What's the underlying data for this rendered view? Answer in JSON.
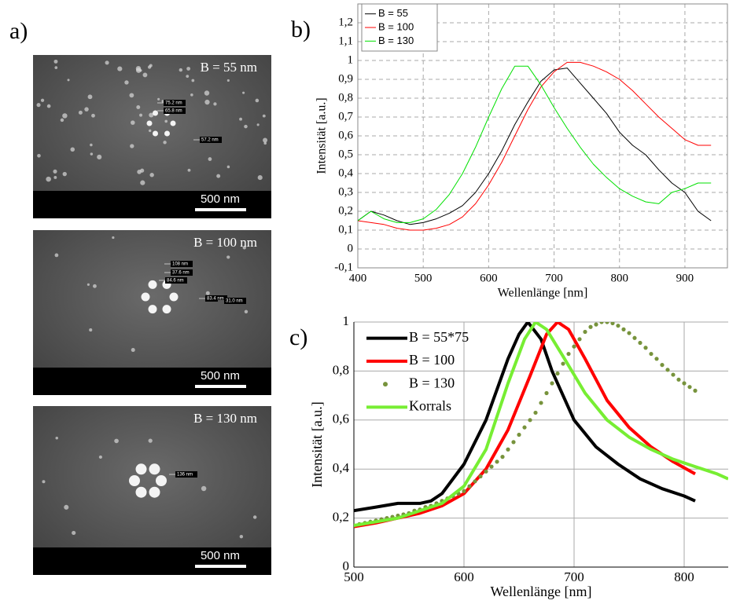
{
  "sem": {
    "label": "a)",
    "images": [
      {
        "label": "B = 55 nm",
        "scale": "500 nm",
        "measurements": [
          "75.2 nm",
          "65.8 nm",
          "57.2 nm"
        ]
      },
      {
        "label": "B = 100 nm",
        "scale": "500 nm",
        "measurements": [
          "108 nm",
          "37.6 nm",
          "84.6 nm",
          "83.4 nm",
          "31.0 nm"
        ]
      },
      {
        "label": "B = 130 nm",
        "scale": "500 nm",
        "measurements": [
          "136 nm"
        ]
      }
    ]
  },
  "chart_data": [
    {
      "type": "line",
      "label": "b)",
      "xlabel": "Wellenlänge [nm]",
      "ylabel": "Intensität [a.u.]",
      "xlim": [
        400,
        965
      ],
      "ylim": [
        -0.1,
        1.3
      ],
      "xticks": [
        400,
        500,
        600,
        700,
        800,
        900
      ],
      "yticks": [
        {
          "value": -0.1,
          "label": "-0,1"
        },
        0,
        {
          "value": 0.1,
          "label": "0,1"
        },
        {
          "value": 0.2,
          "label": "0,2"
        },
        {
          "value": 0.3,
          "label": "0,3"
        },
        {
          "value": 0.4,
          "label": "0,4"
        },
        {
          "value": 0.5,
          "label": "0,5"
        },
        {
          "value": 0.6,
          "label": "0,6"
        },
        {
          "value": 0.7,
          "label": "0,7"
        },
        {
          "value": 0.8,
          "label": "0,8"
        },
        {
          "value": 0.9,
          "label": "0,9"
        },
        1,
        {
          "value": 1.1,
          "label": "1,1"
        },
        {
          "value": 1.2,
          "label": "1,2"
        }
      ],
      "grid": "dashed",
      "legend": "upper left",
      "line_width": 1,
      "x": [
        400,
        420,
        440,
        460,
        480,
        500,
        520,
        540,
        560,
        580,
        600,
        620,
        640,
        660,
        680,
        700,
        720,
        740,
        760,
        780,
        800,
        820,
        840,
        860,
        880,
        900,
        920,
        940
      ],
      "series": [
        {
          "name": "B = 55",
          "color": "#000000",
          "values": [
            0.15,
            0.2,
            0.18,
            0.15,
            0.13,
            0.14,
            0.16,
            0.19,
            0.23,
            0.3,
            0.4,
            0.52,
            0.66,
            0.78,
            0.89,
            0.95,
            0.96,
            0.88,
            0.8,
            0.72,
            0.62,
            0.55,
            0.5,
            0.42,
            0.35,
            0.3,
            0.2,
            0.15
          ]
        },
        {
          "name": "B = 100",
          "color": "#ff0000",
          "values": [
            0.15,
            0.14,
            0.13,
            0.11,
            0.1,
            0.1,
            0.11,
            0.13,
            0.17,
            0.24,
            0.34,
            0.46,
            0.6,
            0.74,
            0.86,
            0.94,
            0.99,
            0.99,
            0.97,
            0.94,
            0.9,
            0.84,
            0.77,
            0.7,
            0.64,
            0.58,
            0.55,
            0.55
          ]
        },
        {
          "name": "B = 130",
          "color": "#00e000",
          "values": [
            0.15,
            0.2,
            0.16,
            0.14,
            0.14,
            0.16,
            0.21,
            0.29,
            0.4,
            0.54,
            0.7,
            0.85,
            0.97,
            0.97,
            0.87,
            0.75,
            0.64,
            0.54,
            0.45,
            0.38,
            0.32,
            0.28,
            0.25,
            0.24,
            0.3,
            0.32,
            0.35,
            0.35
          ]
        }
      ]
    },
    {
      "type": "line",
      "label": "c)",
      "xlabel": "Wellenlänge [nm]",
      "ylabel": "Intensität [a.u.]",
      "xlim": [
        500,
        840
      ],
      "ylim": [
        0,
        1
      ],
      "xticks": [
        500,
        600,
        700,
        800
      ],
      "yticks": [
        0,
        {
          "value": 0.2,
          "label": "0,2"
        },
        {
          "value": 0.4,
          "label": "0,4"
        },
        {
          "value": 0.6,
          "label": "0,6"
        },
        {
          "value": 0.8,
          "label": "0,8"
        },
        1
      ],
      "grid": "solid",
      "legend": "upper left",
      "line_width": 4,
      "series": [
        {
          "name": "B = 55*75",
          "color": "#000000",
          "x": [
            500,
            520,
            540,
            560,
            570,
            580,
            600,
            620,
            640,
            650,
            658,
            670,
            680,
            700,
            720,
            740,
            760,
            780,
            800,
            810
          ],
          "values": [
            0.23,
            0.245,
            0.26,
            0.26,
            0.27,
            0.3,
            0.42,
            0.6,
            0.85,
            0.95,
            1.0,
            0.93,
            0.8,
            0.6,
            0.49,
            0.42,
            0.36,
            0.32,
            0.29,
            0.27
          ]
        },
        {
          "name": "B = 100",
          "color": "#ff0000",
          "x": [
            500,
            520,
            540,
            560,
            580,
            600,
            620,
            640,
            660,
            675,
            685,
            695,
            710,
            730,
            750,
            770,
            790,
            810
          ],
          "values": [
            0.165,
            0.18,
            0.2,
            0.22,
            0.25,
            0.3,
            0.4,
            0.56,
            0.78,
            0.95,
            1.0,
            0.97,
            0.85,
            0.68,
            0.57,
            0.49,
            0.43,
            0.38
          ]
        },
        {
          "name": "B = 130",
          "color": "#77933c",
          "mode": "markers",
          "x": [
            500,
            505,
            510,
            515,
            520,
            525,
            530,
            535,
            540,
            545,
            550,
            555,
            560,
            565,
            570,
            575,
            580,
            585,
            590,
            595,
            600,
            605,
            610,
            615,
            620,
            625,
            630,
            635,
            640,
            645,
            650,
            655,
            660,
            665,
            670,
            675,
            680,
            685,
            690,
            695,
            700,
            705,
            710,
            715,
            720,
            725,
            730,
            735,
            740,
            745,
            750,
            755,
            760,
            765,
            770,
            775,
            780,
            785,
            790,
            795,
            800,
            805,
            810
          ],
          "values": [
            0.17,
            0.175,
            0.18,
            0.185,
            0.19,
            0.195,
            0.2,
            0.205,
            0.21,
            0.215,
            0.22,
            0.23,
            0.235,
            0.245,
            0.25,
            0.26,
            0.27,
            0.28,
            0.29,
            0.3,
            0.31,
            0.33,
            0.35,
            0.37,
            0.39,
            0.41,
            0.43,
            0.45,
            0.48,
            0.51,
            0.54,
            0.57,
            0.6,
            0.63,
            0.67,
            0.71,
            0.75,
            0.79,
            0.83,
            0.87,
            0.9,
            0.93,
            0.96,
            0.98,
            0.99,
            1.0,
            1.0,
            0.995,
            0.985,
            0.97,
            0.955,
            0.935,
            0.915,
            0.895,
            0.87,
            0.85,
            0.825,
            0.805,
            0.785,
            0.765,
            0.75,
            0.735,
            0.72
          ]
        },
        {
          "name": "Korrals",
          "color": "#77ee33",
          "x": [
            500,
            540,
            580,
            600,
            620,
            640,
            655,
            665,
            675,
            690,
            710,
            730,
            750,
            770,
            790,
            810,
            830,
            840
          ],
          "values": [
            0.17,
            0.2,
            0.26,
            0.33,
            0.48,
            0.75,
            0.93,
            1.0,
            0.97,
            0.86,
            0.71,
            0.6,
            0.53,
            0.48,
            0.44,
            0.41,
            0.38,
            0.36
          ]
        }
      ]
    }
  ]
}
